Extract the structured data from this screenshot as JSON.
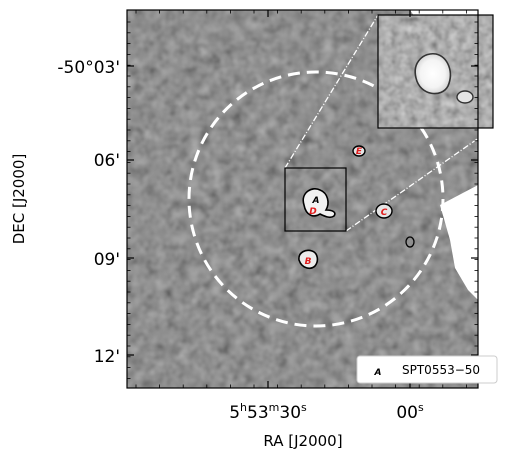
{
  "figure": {
    "x_axis": {
      "title": "RA [J2000]",
      "ticks": [
        {
          "label_main": "5",
          "sup1": "h",
          "mid": "53",
          "sup2": "m",
          "tail": "30",
          "sup3": "s"
        },
        {
          "label_main": "00",
          "sup1": "s"
        }
      ]
    },
    "y_axis": {
      "title": "DEC [J2000]",
      "ticks": [
        "-50°03'",
        "06'",
        "09'",
        "12'"
      ]
    },
    "legend": {
      "marker": "A",
      "label": "SPT0553−50"
    },
    "sources": [
      {
        "id": "A",
        "color": "#000000"
      },
      {
        "id": "B",
        "color": "#e11d1d"
      },
      {
        "id": "C",
        "color": "#e11d1d"
      },
      {
        "id": "D",
        "color": "#e11d1d"
      },
      {
        "id": "E",
        "color": "#e11d1d"
      }
    ],
    "colors": {
      "frame": "#000000",
      "circle": "#ffffff",
      "label_red": "#e11d1d",
      "background_map": "#4a4a4a"
    }
  }
}
